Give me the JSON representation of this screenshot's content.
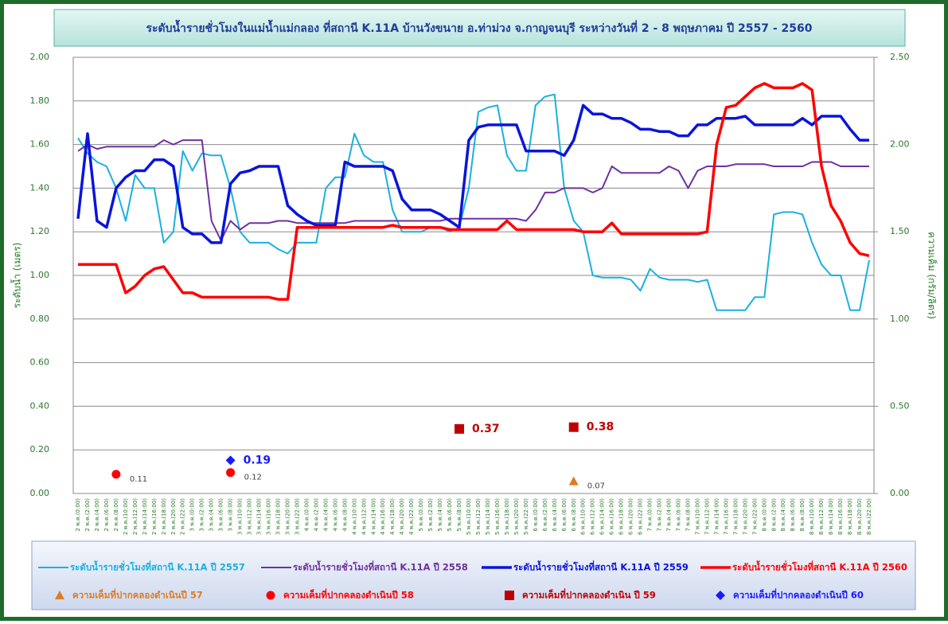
{
  "chart_data": {
    "type": "line",
    "title": "ระดับน้ำรายชั่วโมงในแม่น้ำแม่กลอง ที่สถานี K.11A บ้านวังขนาย อ.ท่าม่วง จ.กาญจนบุรี ระหว่างวันที่ 2 - 8 พฤษภาคม  ปี 2557 - 2560",
    "y_label": "ระดับน้ำ (เมตร)",
    "y2_label": "ความเค็ม (กรัม/ลิตร)",
    "categories": [
      "2 พ.ค.(0:00)",
      "2 พ.ค.(2:00)",
      "2 พ.ค.(4:00)",
      "2 พ.ค.(6:00)",
      "2 พ.ค.(8:00)",
      "2 พ.ค.(10:00)",
      "2 พ.ค.(12:00)",
      "2 พ.ค.(14:00)",
      "2 พ.ค.(16:00)",
      "2 พ.ค.(18:00)",
      "2 พ.ค.(20:00)",
      "2 พ.ค.(22:00)",
      "3 พ.ค.(0:00)",
      "3 พ.ค.(2:00)",
      "3 พ.ค.(4:00)",
      "3 พ.ค.(6:00)",
      "3 พ.ค.(8:00)",
      "3 พ.ค.(10:00)",
      "3 พ.ค.(12:00)",
      "3 พ.ค.(14:00)",
      "3 พ.ค.(16:00)",
      "3 พ.ค.(18:00)",
      "3 พ.ค.(20:00)",
      "3 พ.ค.(22:00)",
      "4 พ.ค.(0:00)",
      "4 พ.ค.(2:00)",
      "4 พ.ค.(4:00)",
      "4 พ.ค.(6:00)",
      "4 พ.ค.(8:00)",
      "4 พ.ค.(10:00)",
      "4 พ.ค.(12:00)",
      "4 พ.ค.(14:00)",
      "4 พ.ค.(16:00)",
      "4 พ.ค.(18:00)",
      "4 พ.ค.(20:00)",
      "4 พ.ค.(22:00)",
      "5 พ.ค.(0:00)",
      "5 พ.ค.(2:00)",
      "5 พ.ค.(4:00)",
      "5 พ.ค.(6:00)",
      "5 พ.ค.(8:00)",
      "5 พ.ค.(10:00)",
      "5 พ.ค.(12:00)",
      "5 พ.ค.(14:00)",
      "5 พ.ค.(16:00)",
      "5 พ.ค.(18:00)",
      "5 พ.ค.(20:00)",
      "5 พ.ค.(22:00)",
      "6 พ.ค.(0:00)",
      "6 พ.ค.(2:00)",
      "6 พ.ค.(4:00)",
      "6 พ.ค.(6:00)",
      "6 พ.ค.(8:00)",
      "6 พ.ค.(10:00)",
      "6 พ.ค.(12:00)",
      "6 พ.ค.(14:00)",
      "6 พ.ค.(16:00)",
      "6 พ.ค.(18:00)",
      "6 พ.ค.(20:00)",
      "6 พ.ค.(22:00)",
      "7 พ.ค.(0:00)",
      "7 พ.ค.(2:00)",
      "7 พ.ค.(4:00)",
      "7 พ.ค.(6:00)",
      "7 พ.ค.(8:00)",
      "7 พ.ค.(10:00)",
      "7 พ.ค.(12:00)",
      "7 พ.ค.(14:00)",
      "7 พ.ค.(16:00)",
      "7 พ.ค.(18:00)",
      "7 พ.ค.(20:00)",
      "7 พ.ค.(22:00)",
      "8 พ.ค.(0:00)",
      "8 พ.ค.(2:00)",
      "8 พ.ค.(4:00)",
      "8 พ.ค.(6:00)",
      "8 พ.ค.(8:00)",
      "8 พ.ค.(10:00)",
      "8 พ.ค.(12:00)",
      "8 พ.ค.(14:00)",
      "8 พ.ค.(16:00)",
      "8 พ.ค.(18:00)",
      "8 พ.ค.(20:00)",
      "8 พ.ค.(22:00)"
    ],
    "series": [
      {
        "name": "ระดับน้ำรายชั่วโมงที่สถานี K.11A ปี 2557",
        "color": "#1ab0e0",
        "width": 2,
        "values": [
          1.63,
          1.56,
          1.52,
          1.5,
          1.4,
          1.25,
          1.46,
          1.4,
          1.4,
          1.15,
          1.2,
          1.57,
          1.48,
          1.56,
          1.55,
          1.55,
          1.4,
          1.2,
          1.15,
          1.15,
          1.15,
          1.12,
          1.1,
          1.15,
          1.15,
          1.15,
          1.4,
          1.45,
          1.45,
          1.65,
          1.55,
          1.52,
          1.52,
          1.3,
          1.2,
          1.2,
          1.2,
          1.22,
          1.22,
          1.2,
          1.22,
          1.4,
          1.75,
          1.77,
          1.78,
          1.55,
          1.48,
          1.48,
          1.78,
          1.82,
          1.83,
          1.4,
          1.25,
          1.2,
          1.0,
          0.99,
          0.99,
          0.99,
          0.98,
          0.93,
          1.03,
          0.99,
          0.98,
          0.98,
          0.98,
          0.97,
          0.98,
          0.84,
          0.84,
          0.84,
          0.84,
          0.9,
          0.9,
          1.28,
          1.29,
          1.29,
          1.28,
          1.15,
          1.05,
          1.0,
          1.0,
          0.84,
          0.84,
          1.07
        ]
      },
      {
        "name": "ระดับน้ำรายชั่วโมงที่สถานี K.11A ปี 2558",
        "color": "#7030a0",
        "width": 2,
        "values": [
          1.57,
          1.6,
          1.58,
          1.59,
          1.59,
          1.59,
          1.59,
          1.59,
          1.59,
          1.62,
          1.6,
          1.62,
          1.62,
          1.62,
          1.25,
          1.16,
          1.25,
          1.21,
          1.24,
          1.24,
          1.24,
          1.25,
          1.25,
          1.24,
          1.24,
          1.24,
          1.24,
          1.24,
          1.24,
          1.25,
          1.25,
          1.25,
          1.25,
          1.25,
          1.25,
          1.25,
          1.25,
          1.25,
          1.25,
          1.26,
          1.26,
          1.26,
          1.26,
          1.26,
          1.26,
          1.26,
          1.26,
          1.25,
          1.3,
          1.38,
          1.38,
          1.4,
          1.4,
          1.4,
          1.38,
          1.4,
          1.5,
          1.47,
          1.47,
          1.47,
          1.47,
          1.47,
          1.5,
          1.48,
          1.4,
          1.48,
          1.5,
          1.5,
          1.5,
          1.51,
          1.51,
          1.51,
          1.51,
          1.5,
          1.5,
          1.5,
          1.5,
          1.52,
          1.52,
          1.52,
          1.5,
          1.5,
          1.5,
          1.5
        ]
      },
      {
        "name": "ระดับน้ำรายชั่วโมงที่สถานี K.11A ปี 2559",
        "color": "#0a14dc",
        "width": 3.5,
        "values": [
          1.26,
          1.65,
          1.25,
          1.22,
          1.4,
          1.45,
          1.48,
          1.48,
          1.53,
          1.53,
          1.5,
          1.22,
          1.19,
          1.19,
          1.15,
          1.15,
          1.42,
          1.47,
          1.48,
          1.5,
          1.5,
          1.5,
          1.32,
          1.28,
          1.25,
          1.23,
          1.23,
          1.23,
          1.52,
          1.5,
          1.5,
          1.5,
          1.5,
          1.48,
          1.35,
          1.3,
          1.3,
          1.3,
          1.28,
          1.25,
          1.22,
          1.62,
          1.68,
          1.69,
          1.69,
          1.69,
          1.69,
          1.57,
          1.57,
          1.57,
          1.57,
          1.55,
          1.62,
          1.78,
          1.74,
          1.74,
          1.72,
          1.72,
          1.7,
          1.67,
          1.67,
          1.66,
          1.66,
          1.64,
          1.64,
          1.69,
          1.69,
          1.72,
          1.72,
          1.72,
          1.73,
          1.69,
          1.69,
          1.69,
          1.69,
          1.69,
          1.72,
          1.69,
          1.73,
          1.73,
          1.73,
          1.67,
          1.62,
          1.62
        ]
      },
      {
        "name": "ระดับน้ำรายชั่วโมงที่สถานี K.11A ปี 2560",
        "color": "#ff0000",
        "width": 3.5,
        "values": [
          1.05,
          1.05,
          1.05,
          1.05,
          1.05,
          0.92,
          0.95,
          1.0,
          1.03,
          1.04,
          0.98,
          0.92,
          0.92,
          0.9,
          0.9,
          0.9,
          0.9,
          0.9,
          0.9,
          0.9,
          0.9,
          0.89,
          0.89,
          1.22,
          1.22,
          1.22,
          1.22,
          1.22,
          1.22,
          1.22,
          1.22,
          1.22,
          1.22,
          1.23,
          1.22,
          1.22,
          1.22,
          1.22,
          1.22,
          1.21,
          1.21,
          1.21,
          1.21,
          1.21,
          1.21,
          1.25,
          1.21,
          1.21,
          1.21,
          1.21,
          1.21,
          1.21,
          1.21,
          1.2,
          1.2,
          1.2,
          1.24,
          1.19,
          1.19,
          1.19,
          1.19,
          1.19,
          1.19,
          1.19,
          1.19,
          1.19,
          1.2,
          1.6,
          1.77,
          1.78,
          1.82,
          1.86,
          1.88,
          1.86,
          1.86,
          1.86,
          1.88,
          1.85,
          1.5,
          1.32,
          1.25,
          1.15,
          1.1,
          1.09
        ]
      },
      {
        "name": "ความเค็มที่ปากคลองดำเนินปี 57",
        "type": "scatter",
        "marker": "triangle",
        "color": "#e07b20",
        "axis": "y2",
        "label_style": "small",
        "x": [
          "6 พ.ค.(8:00)"
        ],
        "values": [
          0.07
        ]
      },
      {
        "name": "ความเค็มที่ปากคลองดำเนินปี 58",
        "type": "scatter",
        "marker": "circle",
        "color": "#ff0000",
        "axis": "y2",
        "label_style": "small",
        "x": [
          "2 พ.ค.(8:00)",
          "3 พ.ค.(8:00)"
        ],
        "values": [
          0.11,
          0.12
        ]
      },
      {
        "name": "ความเค็มที่ปากคลองดำเนิน ปี 59",
        "type": "scatter",
        "marker": "square",
        "color": "#c00000",
        "axis": "y2",
        "label_style": "bold",
        "x": [
          "5 พ.ค.(8:00)",
          "6 พ.ค.(8:00)"
        ],
        "values": [
          0.37,
          0.38
        ]
      },
      {
        "name": "ความเค็มที่ปากคลองดำเนินปี 60",
        "type": "scatter",
        "marker": "diamond",
        "color": "#1a1aff",
        "axis": "y2",
        "label_style": "bold",
        "x": [
          "3 พ.ค.(8:00)"
        ],
        "values": [
          0.19
        ]
      }
    ],
    "ylim": [
      0,
      2
    ],
    "yticks": [
      {
        "value": 0,
        "label": "0.00"
      },
      {
        "value": 0.2,
        "label": "0.20"
      },
      {
        "value": 0.4,
        "label": "0.40"
      },
      {
        "value": 0.6,
        "label": "0.60"
      },
      {
        "value": 0.8,
        "label": "0.80"
      },
      {
        "value": 1,
        "label": "1.00"
      },
      {
        "value": 1.2,
        "label": "1.20"
      },
      {
        "value": 1.4,
        "label": "1.40"
      },
      {
        "value": 1.6,
        "label": "1.60"
      },
      {
        "value": 1.8,
        "label": "1.80"
      },
      {
        "value": 2,
        "label": "2.00"
      }
    ],
    "y2lim": [
      0,
      2.5
    ],
    "y2ticks": [
      {
        "value": 0,
        "label": "0.00"
      },
      {
        "value": 0.5,
        "label": "0.50"
      },
      {
        "value": 1,
        "label": "1.00"
      },
      {
        "value": 1.5,
        "label": "1.50"
      },
      {
        "value": 2,
        "label": "2.00"
      },
      {
        "value": 2.5,
        "label": "2.50"
      }
    ],
    "grid": true,
    "legend": "bottom"
  }
}
